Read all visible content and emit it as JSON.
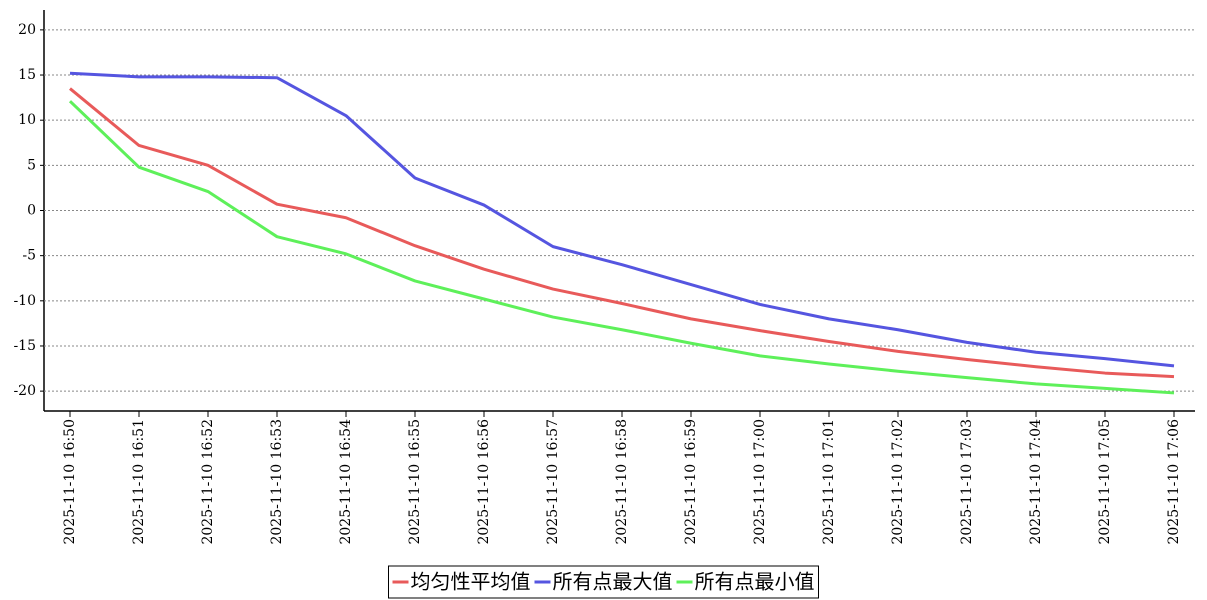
{
  "chart_data": {
    "type": "line",
    "categories": [
      "2025-11-10 16:50",
      "2025-11-10 16:51",
      "2025-11-10 16:52",
      "2025-11-10 16:53",
      "2025-11-10 16:54",
      "2025-11-10 16:55",
      "2025-11-10 16:56",
      "2025-11-10 16:57",
      "2025-11-10 16:58",
      "2025-11-10 16:59",
      "2025-11-10 17:00",
      "2025-11-10 17:01",
      "2025-11-10 17:02",
      "2025-11-10 17:03",
      "2025-11-10 17:04",
      "2025-11-10 17:05",
      "2025-11-10 17:06"
    ],
    "series": [
      {
        "name": "均匀性平均值",
        "color": "#e85a5a",
        "values": [
          13.5,
          7.2,
          5.0,
          0.7,
          -0.8,
          -3.9,
          -6.5,
          -8.7,
          -10.3,
          -12.0,
          -13.3,
          -14.5,
          -15.6,
          -16.5,
          -17.3,
          -18.0,
          -18.4
        ]
      },
      {
        "name": "所有点最大值",
        "color": "#5555e0",
        "values": [
          15.2,
          14.8,
          14.8,
          14.7,
          10.5,
          3.6,
          0.6,
          -4.0,
          -6.0,
          -8.2,
          -10.4,
          -12.0,
          -13.2,
          -14.6,
          -15.7,
          -16.4,
          -17.2
        ]
      },
      {
        "name": "所有点最小值",
        "color": "#5ef05a",
        "values": [
          12.1,
          4.8,
          2.1,
          -2.9,
          -4.8,
          -7.8,
          -9.8,
          -11.8,
          -13.2,
          -14.7,
          -16.1,
          -17.0,
          -17.8,
          -18.5,
          -19.2,
          -19.7,
          -20.2
        ]
      }
    ],
    "ylim": [
      -22.2,
      22.2
    ],
    "yticks": [
      -20,
      -15,
      -10,
      -5,
      0,
      5,
      10,
      15,
      20
    ],
    "grid": true,
    "legend": "bottom"
  }
}
